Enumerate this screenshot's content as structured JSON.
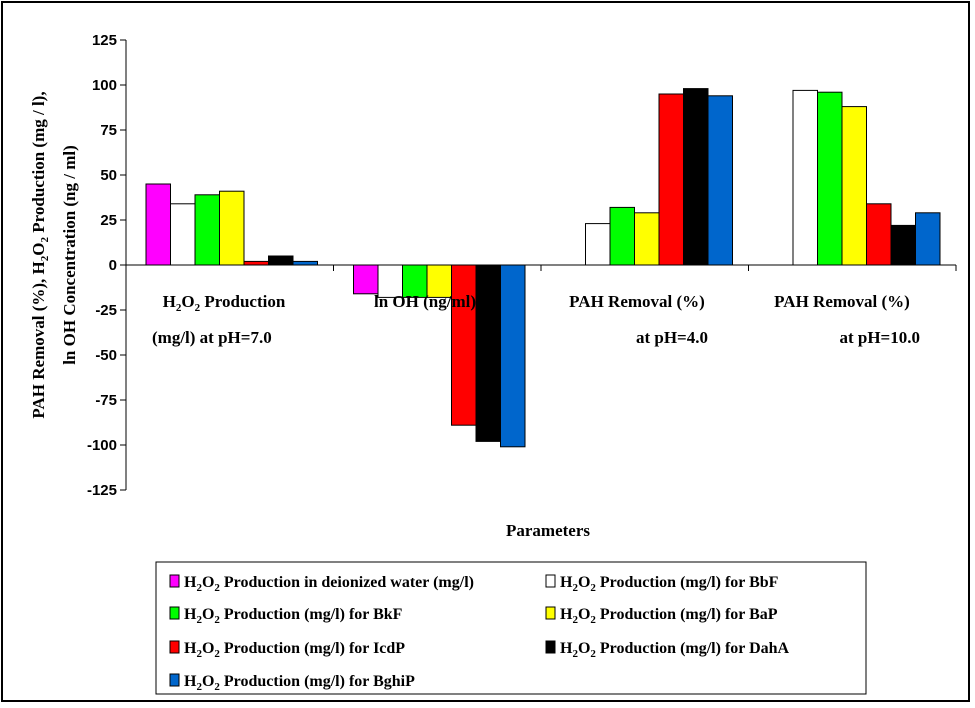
{
  "chart_data": {
    "type": "bar",
    "xlabel": "Parameters",
    "ylabel_lines": [
      "PAH  Removal (%), H2O2 Production (mg / l),",
      "ln OH Concentration (ng / ml)"
    ],
    "ylim": [
      -125,
      125
    ],
    "yticks": [
      125,
      100,
      75,
      50,
      25,
      0,
      -25,
      -50,
      -75,
      -100,
      -125
    ],
    "grid": false,
    "legend_position": "bottom",
    "categories": [
      [
        "H2O2 Production",
        "(mg/l)  at pH=7.0"
      ],
      [
        "ln OH (ng/ml)",
        ""
      ],
      [
        "PAH Removal (%)",
        "at pH=4.0"
      ],
      [
        "PAH Removal (%)",
        "at pH=10.0"
      ]
    ],
    "series": [
      {
        "name": "H2O2 Production in deionized water (mg/l)",
        "color": "#ff00ff",
        "values": [
          45,
          -16,
          null,
          null
        ]
      },
      {
        "name": "H2O2 Production  (mg/l) for BbF",
        "color": "#ffffff",
        "values": [
          34,
          -18,
          23,
          97
        ]
      },
      {
        "name": "H2O2 Production  (mg/l) for BkF",
        "color": "#00ff00",
        "values": [
          39,
          -18,
          32,
          96
        ]
      },
      {
        "name": "H2O2 Production  (mg/l) for BaP",
        "color": "#ffff00",
        "values": [
          41,
          -18,
          29,
          88
        ]
      },
      {
        "name": "H2O2 Production  (mg/l) for IcdP",
        "color": "#ff0000",
        "values": [
          2,
          -89,
          95,
          34
        ]
      },
      {
        "name": "H2O2 Production  (mg/l) for DahA",
        "color": "#000000",
        "values": [
          5,
          -98,
          98,
          22
        ]
      },
      {
        "name": "H2O2 Production  (mg/l) for BghiP",
        "color": "#0066cc",
        "values": [
          2,
          -101,
          94,
          29
        ]
      }
    ]
  }
}
